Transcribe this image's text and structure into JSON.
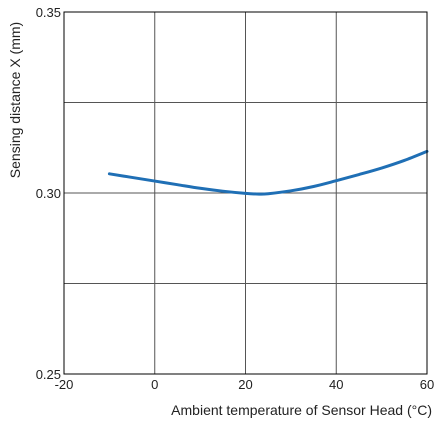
{
  "chart_data": {
    "type": "line",
    "title": "",
    "xlabel": "Ambient temperature of Sensor Head (°C)",
    "ylabel": "Sensing distance X (mm)",
    "xlim": [
      -20,
      60
    ],
    "ylim": [
      0.25,
      0.35
    ],
    "x_ticks": [
      -20,
      0,
      20,
      40,
      60
    ],
    "x_tick_labels": [
      "-20",
      "0",
      "20",
      "40",
      "60"
    ],
    "y_ticks": [
      0.25,
      0.275,
      0.3,
      0.325,
      0.35
    ],
    "y_tick_labels": [
      "0.25",
      "",
      "0.30",
      "",
      "0.35"
    ],
    "grid": true,
    "legend": "none",
    "series": [
      {
        "color": "#1f6fb5",
        "x": [
          -10,
          -5,
          0,
          5,
          10,
          15,
          20,
          23,
          25,
          30,
          35,
          40,
          45,
          50,
          55,
          60
        ],
        "y": [
          0.3053,
          0.3043,
          0.3033,
          0.3023,
          0.3013,
          0.3005,
          0.2999,
          0.2997,
          0.2998,
          0.3006,
          0.3018,
          0.3034,
          0.3051,
          0.3069,
          0.309,
          0.3115
        ]
      }
    ]
  }
}
